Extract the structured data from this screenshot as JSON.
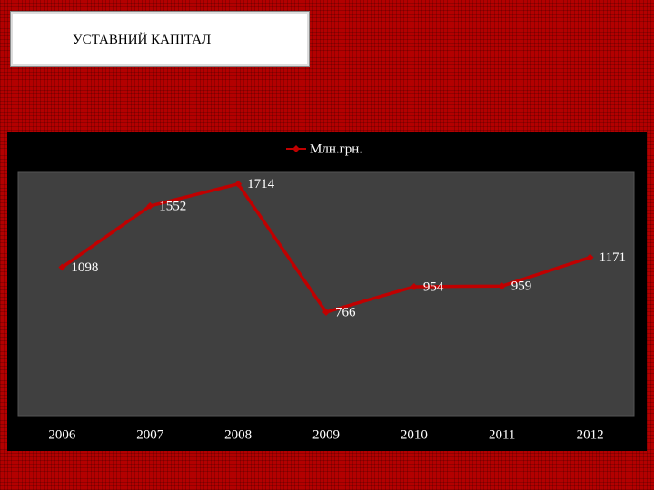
{
  "header": {
    "title": "УСТАВНИЙ КАПІТАЛ"
  },
  "chart_data": {
    "type": "line",
    "categories": [
      "2006",
      "2007",
      "2008",
      "2009",
      "2010",
      "2011",
      "2012"
    ],
    "series": [
      {
        "name": "Млн.грн.",
        "color": "#c00000",
        "values": [
          1098,
          1552,
          1714,
          766,
          954,
          959,
          1171
        ]
      }
    ],
    "ylim": [
      0,
      1800
    ]
  }
}
